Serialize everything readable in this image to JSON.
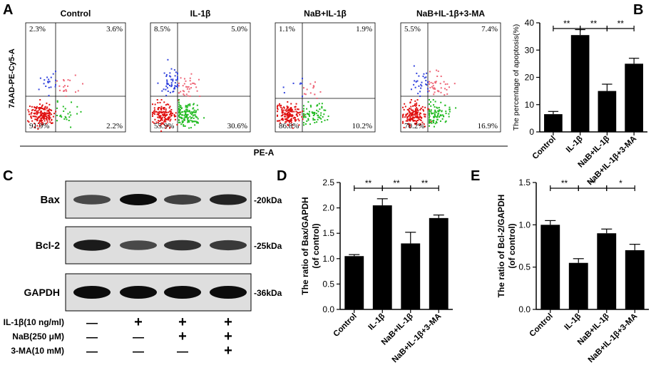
{
  "panel_letters": [
    "A",
    "B",
    "C",
    "D",
    "E"
  ],
  "flow": {
    "y_axis_label": "7AAD-PE-Cy5-A",
    "x_axis_label": "PE-A",
    "plots": [
      {
        "title": "Control",
        "ul": "2.3%",
        "ur": "3.6%",
        "ll": "91.9%",
        "lr": "2.2%"
      },
      {
        "title": "IL-1β",
        "ul": "8.5%",
        "ur": "5.0%",
        "ll": "55.9%",
        "lr": "30.6%"
      },
      {
        "title": "NaB+IL-1β",
        "ul": "1.1%",
        "ur": "1.9%",
        "ll": "86.8%",
        "lr": "10.2%"
      },
      {
        "title": "NaB+IL-1β+3-MA",
        "ul": "5.5%",
        "ur": "7.4%",
        "ll": "70.2%",
        "lr": "16.9%"
      }
    ]
  },
  "blot": {
    "proteins": [
      {
        "name": "Bax",
        "kda": "20kDa"
      },
      {
        "name": "Bcl-2",
        "kda": "25kDa"
      },
      {
        "name": "GAPDH",
        "kda": "36kDa"
      }
    ],
    "treatments": [
      {
        "label": "IL-1β(10 ng/ml)",
        "marks": [
          "—",
          "+",
          "+",
          "+"
        ]
      },
      {
        "label": "NaB(250 μM)",
        "marks": [
          "—",
          "—",
          "+",
          "+"
        ]
      },
      {
        "label": "3-MA(10 mM)",
        "marks": [
          "—",
          "—",
          "—",
          "+"
        ]
      }
    ]
  },
  "chart_data": [
    {
      "type": "bar",
      "panel": "B",
      "categories": [
        "Control",
        "IL-1β",
        "NaB+IL-1β",
        "NaB+IL-1β+3-MA"
      ],
      "values": [
        6.5,
        35.5,
        15,
        25
      ],
      "errors": [
        1,
        2,
        2.5,
        2
      ],
      "ylabel": "The percentage of apoptosis(%)",
      "ylim": [
        0,
        40
      ],
      "yticks": [
        0,
        10,
        20,
        30,
        40
      ],
      "significance": [
        {
          "from": 0,
          "to": 1,
          "label": "**"
        },
        {
          "from": 1,
          "to": 2,
          "label": "**"
        },
        {
          "from": 2,
          "to": 3,
          "label": "**"
        }
      ]
    },
    {
      "type": "bar",
      "panel": "D",
      "categories": [
        "Control",
        "IL-1β",
        "NaB+IL-1β",
        "NaB+IL-1β+3-MA"
      ],
      "values": [
        1.05,
        2.05,
        1.3,
        1.8
      ],
      "errors": [
        0.03,
        0.13,
        0.22,
        0.06
      ],
      "ylabel": "The ratio of Bax/GAPDH",
      "ylabel2": "(of control)",
      "ylim": [
        0,
        2.5
      ],
      "yticks": [
        "0.0",
        "0.5",
        "1.0",
        "1.5",
        "2.0",
        "2.5"
      ],
      "significance": [
        {
          "from": 0,
          "to": 1,
          "label": "**"
        },
        {
          "from": 1,
          "to": 2,
          "label": "**"
        },
        {
          "from": 2,
          "to": 3,
          "label": "**"
        }
      ]
    },
    {
      "type": "bar",
      "panel": "E",
      "categories": [
        "Control",
        "IL-1β",
        "NaB+IL-1β",
        "NaB+IL-1β+3-MA"
      ],
      "values": [
        1.0,
        0.55,
        0.9,
        0.7
      ],
      "errors": [
        0.05,
        0.05,
        0.05,
        0.07
      ],
      "ylabel": "The ratio of Bcl-2/GAPDH",
      "ylabel2": "(of control)",
      "ylim": [
        0,
        1.5
      ],
      "yticks": [
        "0.0",
        "0.5",
        "1.0",
        "1.5"
      ],
      "significance": [
        {
          "from": 0,
          "to": 1,
          "label": "**"
        },
        {
          "from": 1,
          "to": 2,
          "label": "**"
        },
        {
          "from": 2,
          "to": 3,
          "label": "*"
        }
      ]
    }
  ]
}
